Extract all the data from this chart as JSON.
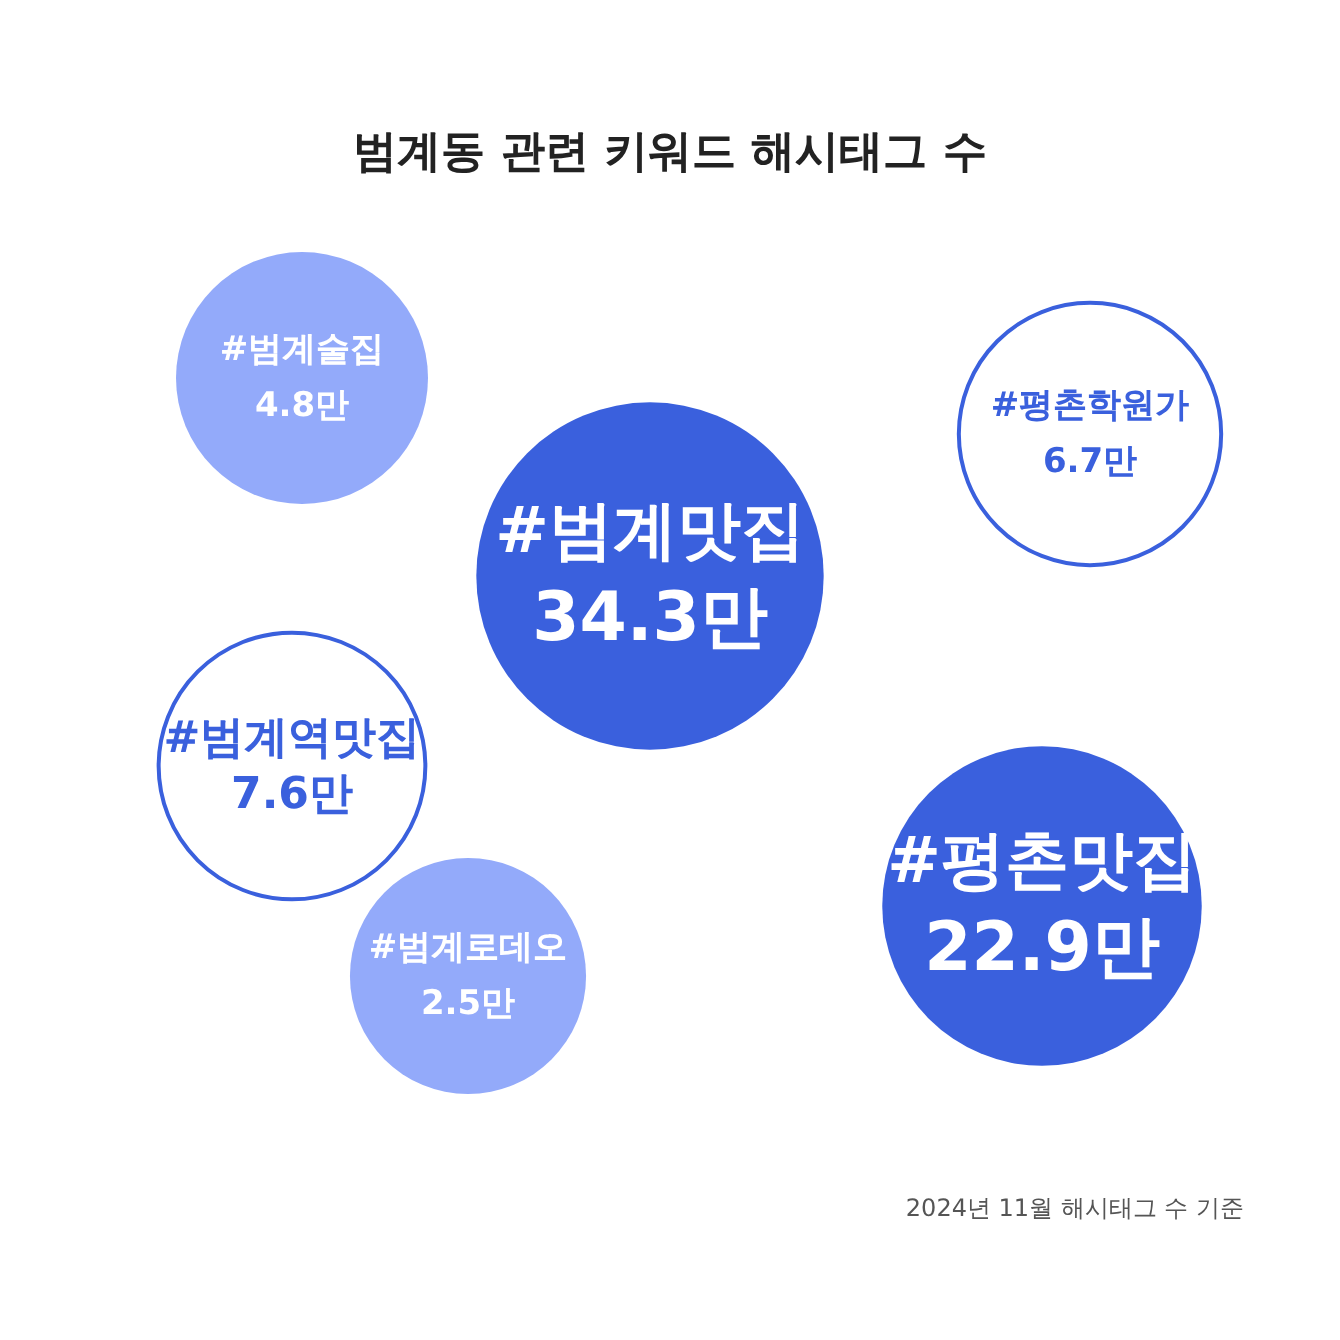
{
  "chart_data": {
    "type": "other",
    "title": "범계동 관련 키워드 해시태그 수",
    "categories": [
      "#범계맛집",
      "#평촌맛집",
      "#범계역맛집",
      "#평촌학원가",
      "#범계술집",
      "#범계로데오"
    ],
    "values": [
      34.3,
      22.9,
      7.6,
      6.7,
      4.8,
      2.5
    ],
    "value_labels": [
      "34.3만",
      "22.9만",
      "7.6만",
      "6.7만",
      "4.8만",
      "2.5만"
    ],
    "colors": [
      "#3a60dd",
      "#3a60dd",
      "#ffffff",
      "#ffffff",
      "#93aafa",
      "#93aafa"
    ],
    "data_labels": true,
    "annotations": [
      "2024년 11월 해시태그 수 기준"
    ]
  }
}
